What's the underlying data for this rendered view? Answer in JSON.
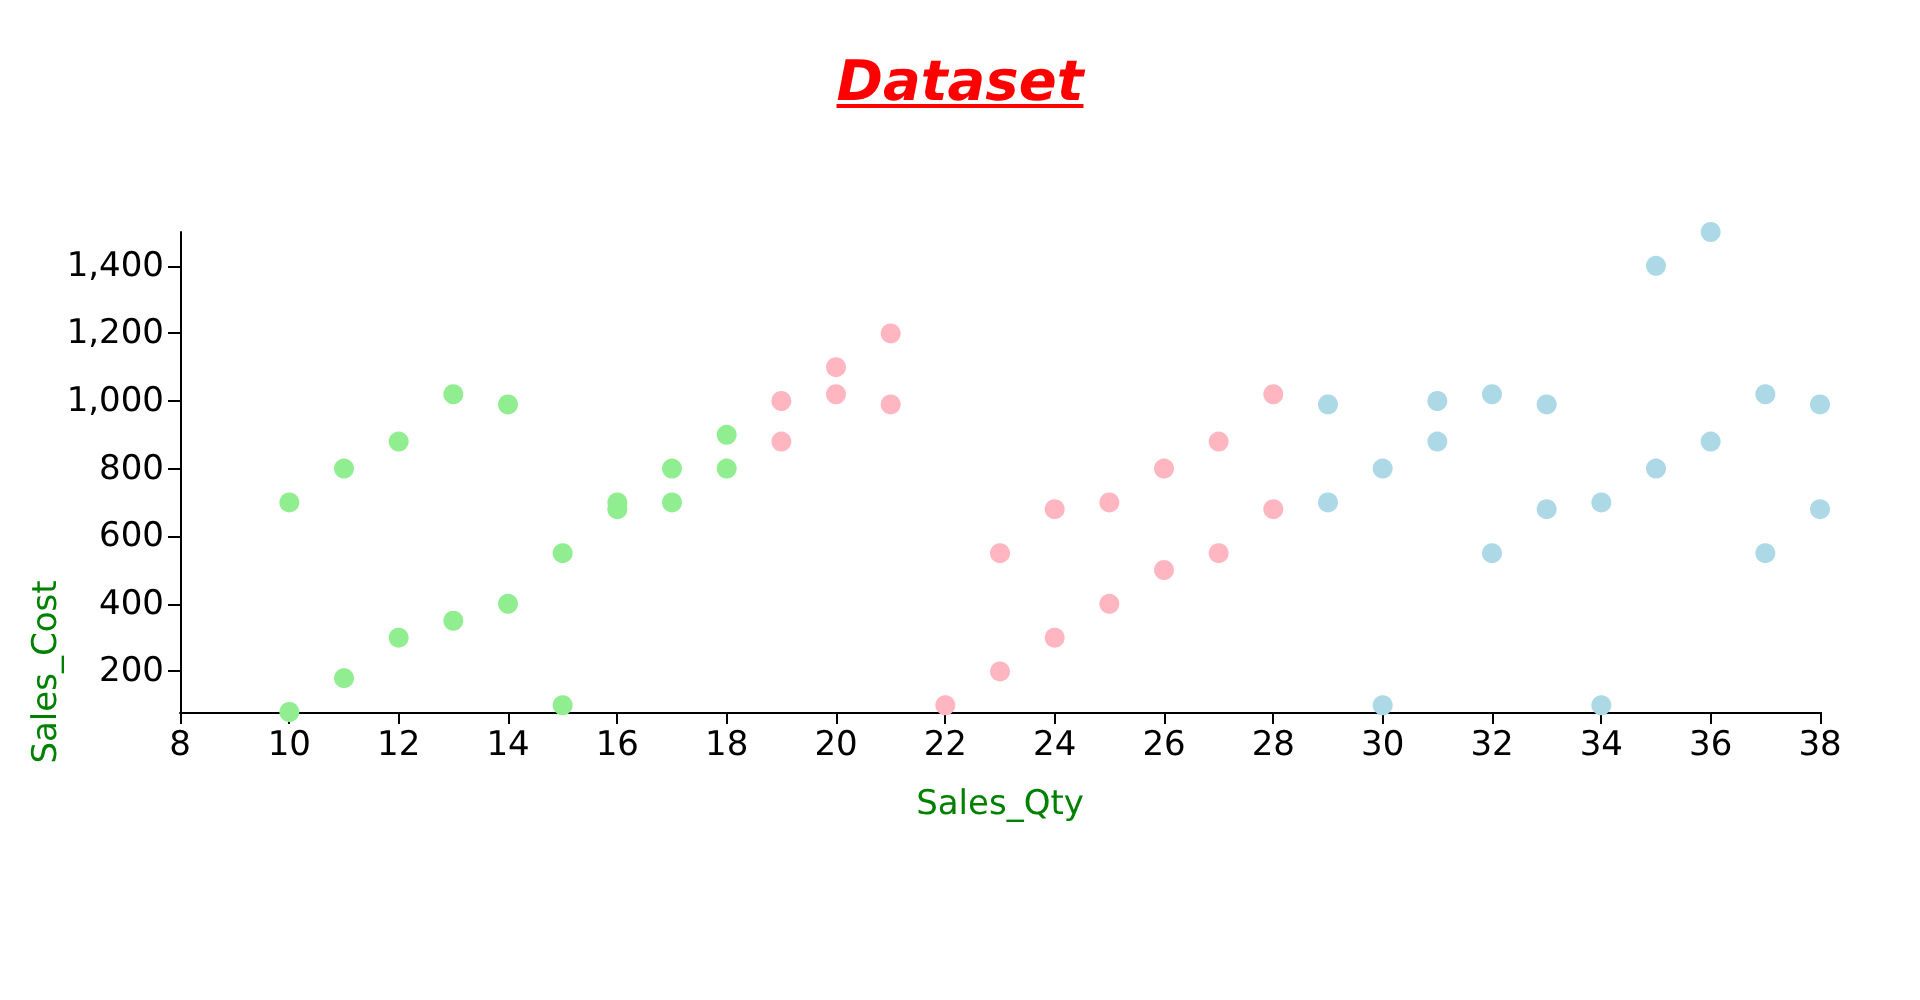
{
  "chart_data": {
    "type": "scatter",
    "title": "Dataset",
    "xlabel": "Sales_Qty",
    "ylabel": "Sales_Cost",
    "xlim": [
      8,
      38
    ],
    "xticks": [
      8,
      10,
      12,
      14,
      16,
      18,
      20,
      22,
      24,
      26,
      28,
      30,
      32,
      34,
      36,
      38
    ],
    "ylim": [
      80,
      1500
    ],
    "yticks": [
      200,
      400,
      600,
      800,
      {
        "value": 1000,
        "label": "1,000"
      },
      {
        "value": 1200,
        "label": "1,200"
      },
      {
        "value": 1400,
        "label": "1,400"
      }
    ],
    "marker": "circle",
    "series": [
      {
        "color": "#90ee90",
        "x": [
          10,
          10,
          11,
          11,
          12,
          12,
          13,
          13,
          14,
          14,
          15,
          15,
          16,
          16,
          17,
          17,
          18,
          18
        ],
        "values": [
          700,
          80,
          800,
          180,
          880,
          300,
          1020,
          350,
          990,
          400,
          550,
          100,
          700,
          680,
          800,
          700,
          900,
          800
        ]
      },
      {
        "color": "#ffb6c1",
        "x": [
          19,
          19,
          20,
          20,
          21,
          21,
          22,
          23,
          23,
          24,
          24,
          25,
          25,
          26,
          26,
          27,
          27,
          28,
          28
        ],
        "values": [
          1000,
          880,
          1100,
          1020,
          1200,
          990,
          100,
          550,
          200,
          680,
          300,
          700,
          400,
          800,
          500,
          880,
          550,
          1020,
          680
        ]
      },
      {
        "color": "#add8e6",
        "x": [
          29,
          29,
          30,
          30,
          31,
          31,
          32,
          32,
          33,
          33,
          34,
          34,
          35,
          35,
          36,
          36,
          37,
          37,
          38,
          38
        ],
        "values": [
          990,
          700,
          800,
          100,
          1000,
          880,
          1020,
          550,
          990,
          680,
          700,
          100,
          1400,
          800,
          1500,
          880,
          1020,
          550,
          990,
          680
        ]
      }
    ]
  }
}
